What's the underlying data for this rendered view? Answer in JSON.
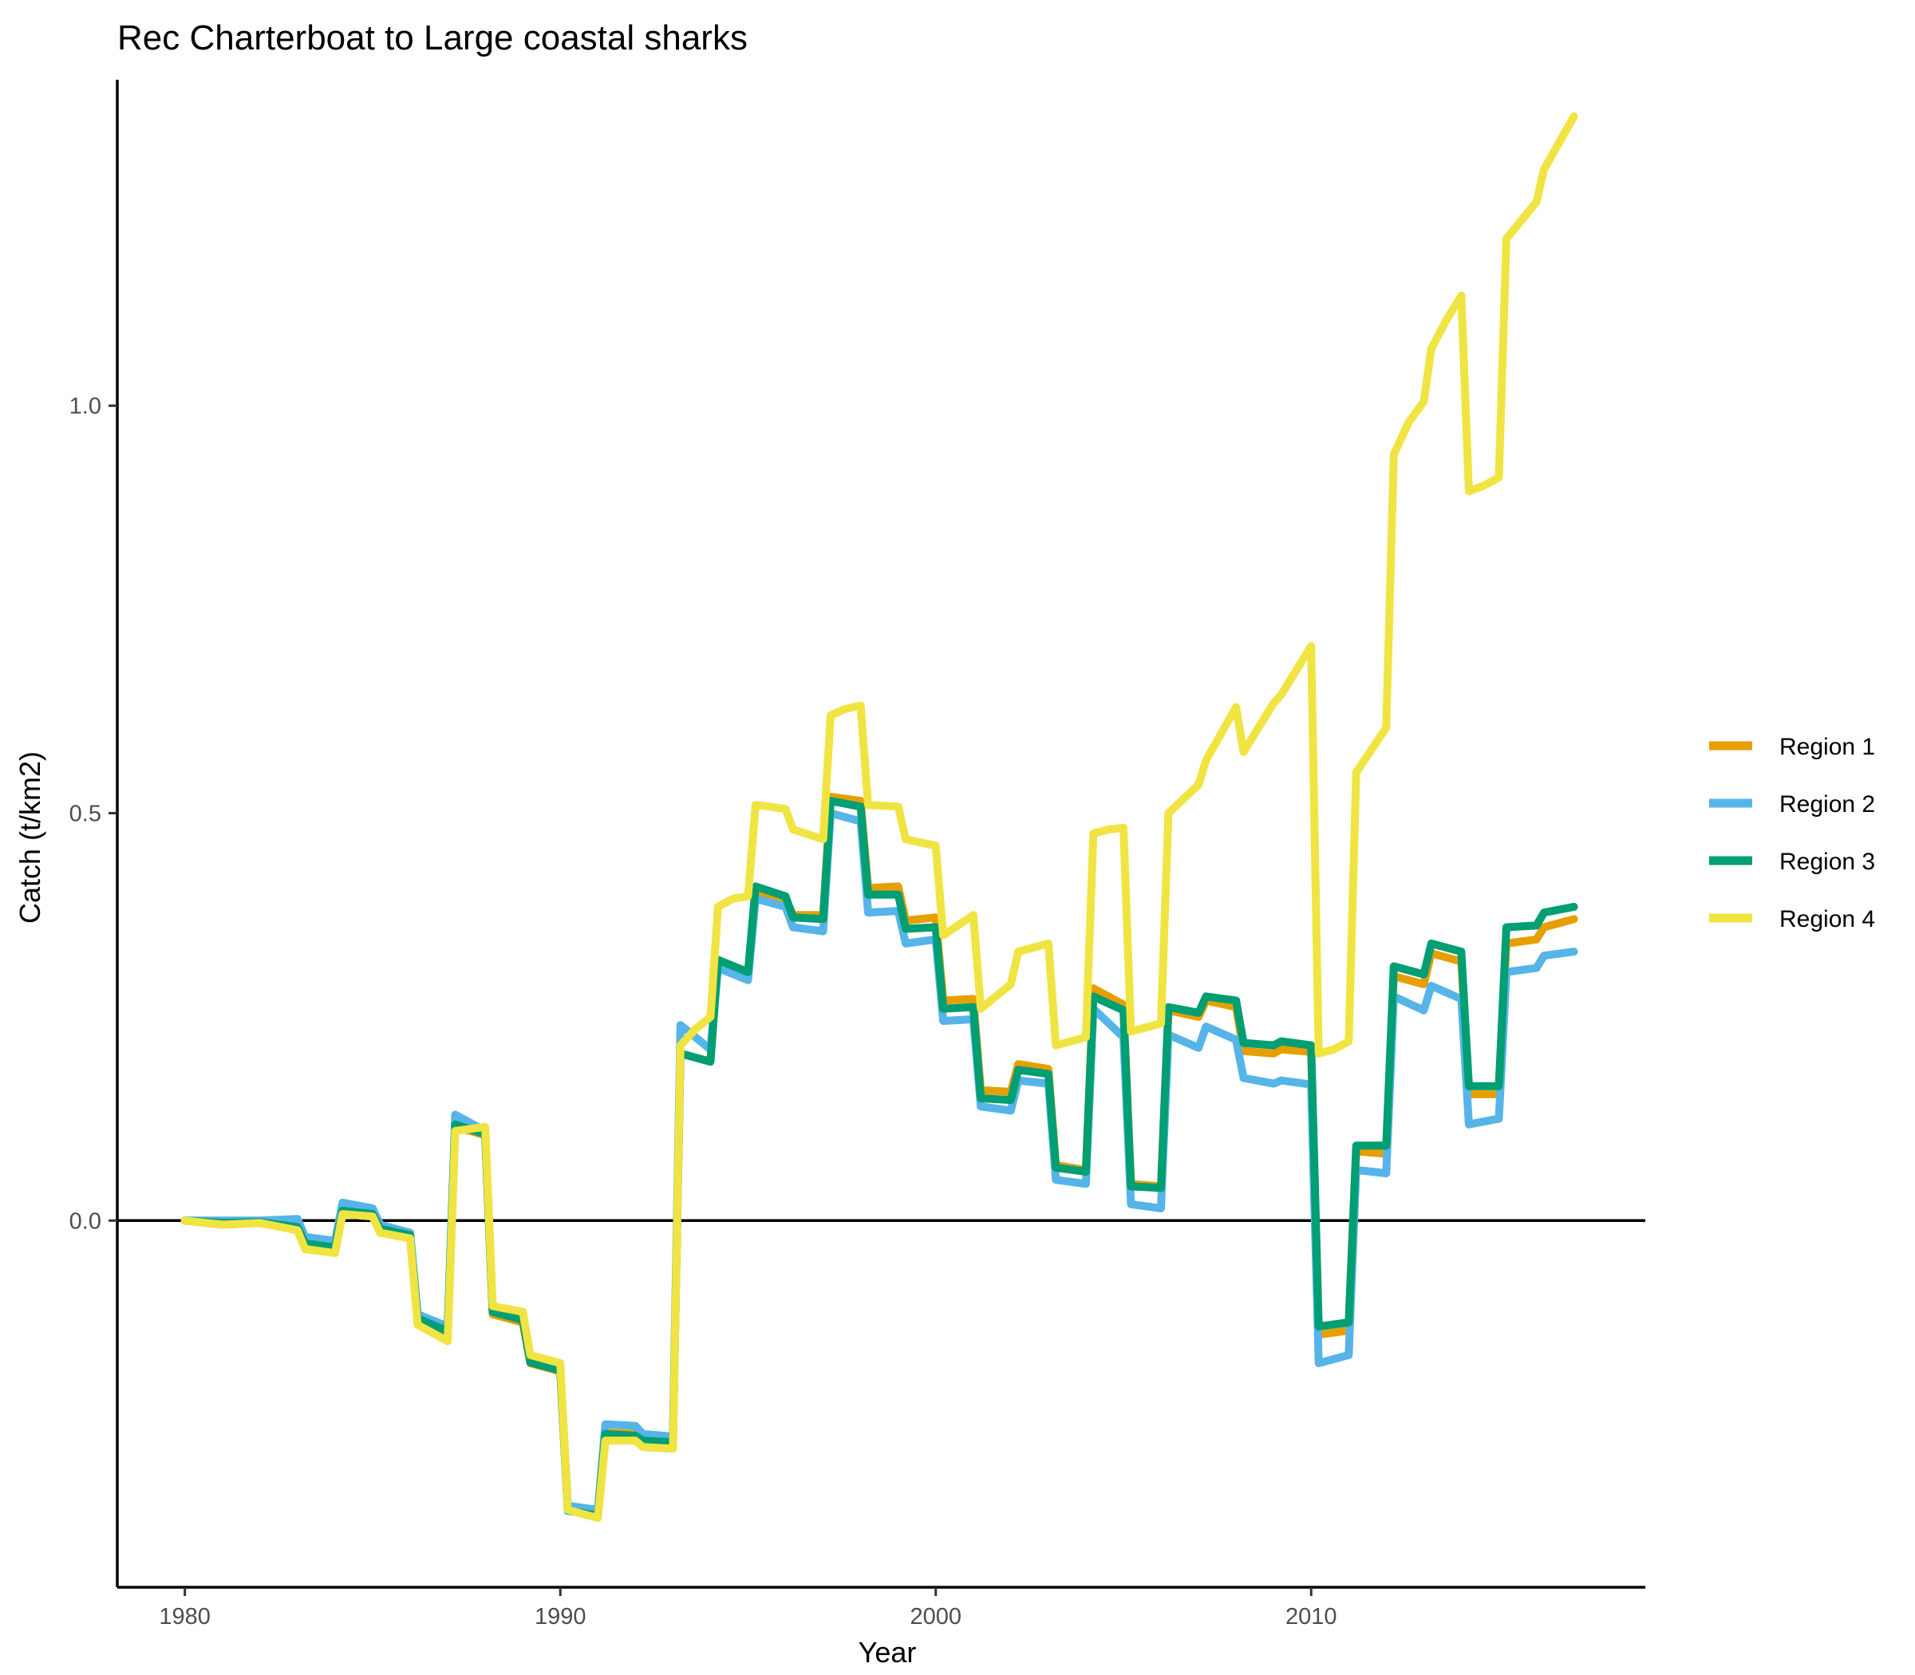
{
  "chart_data": {
    "type": "line",
    "title": "Rec Charterboat to Large coastal sharks",
    "xlabel": "Year",
    "ylabel": "Catch (t/km2)",
    "xlim": [
      1978.2,
      2018.9
    ],
    "ylim": [
      -0.45,
      1.4
    ],
    "x_ticks": [
      1980,
      1990,
      2000,
      2010
    ],
    "y_ticks": [
      0.0,
      0.5,
      1.0
    ],
    "x_tick_labels": [
      "1980",
      "1990",
      "2000",
      "2010"
    ],
    "y_tick_labels": [
      "0.0",
      "0.5",
      "1.0"
    ],
    "zero_line": true,
    "grid": false,
    "legend_position": "right",
    "series": [
      {
        "name": "Region 1",
        "color": "#E69F00",
        "points": [
          [
            1980,
            0.0
          ],
          [
            1981,
            -0.005
          ],
          [
            1982,
            -0.003
          ],
          [
            1983,
            -0.01
          ],
          [
            1983.2,
            -0.03
          ],
          [
            1984,
            -0.035
          ],
          [
            1984.2,
            0.01
          ],
          [
            1985,
            0.007
          ],
          [
            1985.2,
            -0.012
          ],
          [
            1986,
            -0.02
          ],
          [
            1986.2,
            -0.125
          ],
          [
            1987,
            -0.14
          ],
          [
            1987.2,
            0.115
          ],
          [
            1988,
            0.105
          ],
          [
            1988.2,
            -0.115
          ],
          [
            1989,
            -0.125
          ],
          [
            1989.2,
            -0.175
          ],
          [
            1990,
            -0.185
          ],
          [
            1990.2,
            -0.355
          ],
          [
            1991,
            -0.36
          ],
          [
            1991.2,
            -0.26
          ],
          [
            1992,
            -0.262
          ],
          [
            1992.2,
            -0.268
          ],
          [
            1993,
            -0.27
          ],
          [
            1993.2,
            0.205
          ],
          [
            1994,
            0.195
          ],
          [
            1994.2,
            0.32
          ],
          [
            1995,
            0.305
          ],
          [
            1995.2,
            0.405
          ],
          [
            1996,
            0.395
          ],
          [
            1996.2,
            0.375
          ],
          [
            1997,
            0.375
          ],
          [
            1997.2,
            0.52
          ],
          [
            1998,
            0.515
          ],
          [
            1998.2,
            0.408
          ],
          [
            1999,
            0.41
          ],
          [
            1999.2,
            0.368
          ],
          [
            2000,
            0.372
          ],
          [
            2000.2,
            0.27
          ],
          [
            2001,
            0.272
          ],
          [
            2001.2,
            0.16
          ],
          [
            2002,
            0.158
          ],
          [
            2002.2,
            0.192
          ],
          [
            2003,
            0.186
          ],
          [
            2003.2,
            0.068
          ],
          [
            2004,
            0.062
          ],
          [
            2004.2,
            0.285
          ],
          [
            2005,
            0.265
          ],
          [
            2005.2,
            0.045
          ],
          [
            2006,
            0.042
          ],
          [
            2006.2,
            0.258
          ],
          [
            2007,
            0.25
          ],
          [
            2007.2,
            0.27
          ],
          [
            2008,
            0.262
          ],
          [
            2008.2,
            0.208
          ],
          [
            2009,
            0.205
          ],
          [
            2009.2,
            0.21
          ],
          [
            2010,
            0.207
          ],
          [
            2010.2,
            -0.14
          ],
          [
            2011,
            -0.135
          ],
          [
            2011.2,
            0.085
          ],
          [
            2012,
            0.082
          ],
          [
            2012.2,
            0.3
          ],
          [
            2013,
            0.29
          ],
          [
            2013.2,
            0.328
          ],
          [
            2014,
            0.318
          ],
          [
            2014.2,
            0.155
          ],
          [
            2015,
            0.155
          ],
          [
            2015.2,
            0.34
          ],
          [
            2016,
            0.345
          ],
          [
            2016.2,
            0.36
          ],
          [
            2017,
            0.37
          ]
        ]
      },
      {
        "name": "Region 2",
        "color": "#56B4E9",
        "points": [
          [
            1980,
            0.0
          ],
          [
            1981,
            0.0
          ],
          [
            1982,
            0.0
          ],
          [
            1983,
            0.002
          ],
          [
            1983.2,
            -0.02
          ],
          [
            1984,
            -0.025
          ],
          [
            1984.2,
            0.022
          ],
          [
            1985,
            0.015
          ],
          [
            1985.2,
            -0.005
          ],
          [
            1986,
            -0.015
          ],
          [
            1986.2,
            -0.115
          ],
          [
            1987,
            -0.13
          ],
          [
            1987.2,
            0.13
          ],
          [
            1988,
            0.11
          ],
          [
            1988.2,
            -0.108
          ],
          [
            1989,
            -0.12
          ],
          [
            1989.2,
            -0.17
          ],
          [
            1990,
            -0.182
          ],
          [
            1990.2,
            -0.35
          ],
          [
            1991,
            -0.355
          ],
          [
            1991.2,
            -0.25
          ],
          [
            1992,
            -0.252
          ],
          [
            1992.2,
            -0.262
          ],
          [
            1993,
            -0.265
          ],
          [
            1993.2,
            0.24
          ],
          [
            1994,
            0.21
          ],
          [
            1994.2,
            0.31
          ],
          [
            1995,
            0.295
          ],
          [
            1995.2,
            0.395
          ],
          [
            1996,
            0.385
          ],
          [
            1996.2,
            0.36
          ],
          [
            1997,
            0.355
          ],
          [
            1997.2,
            0.5
          ],
          [
            1998,
            0.49
          ],
          [
            1998.2,
            0.378
          ],
          [
            1999,
            0.38
          ],
          [
            1999.2,
            0.34
          ],
          [
            2000,
            0.345
          ],
          [
            2000.2,
            0.245
          ],
          [
            2001,
            0.247
          ],
          [
            2001.2,
            0.14
          ],
          [
            2002,
            0.135
          ],
          [
            2002.2,
            0.172
          ],
          [
            2003,
            0.168
          ],
          [
            2003.2,
            0.05
          ],
          [
            2004,
            0.045
          ],
          [
            2004.2,
            0.26
          ],
          [
            2005,
            0.225
          ],
          [
            2005.2,
            0.02
          ],
          [
            2006,
            0.015
          ],
          [
            2006.2,
            0.228
          ],
          [
            2007,
            0.212
          ],
          [
            2007.2,
            0.238
          ],
          [
            2008,
            0.222
          ],
          [
            2008.2,
            0.175
          ],
          [
            2009,
            0.168
          ],
          [
            2009.2,
            0.172
          ],
          [
            2010,
            0.167
          ],
          [
            2010.2,
            -0.175
          ],
          [
            2011,
            -0.165
          ],
          [
            2011.2,
            0.062
          ],
          [
            2012,
            0.058
          ],
          [
            2012.2,
            0.275
          ],
          [
            2013,
            0.258
          ],
          [
            2013.2,
            0.288
          ],
          [
            2014,
            0.272
          ],
          [
            2014.2,
            0.118
          ],
          [
            2015,
            0.125
          ],
          [
            2015.2,
            0.305
          ],
          [
            2016,
            0.31
          ],
          [
            2016.2,
            0.325
          ],
          [
            2017,
            0.33
          ]
        ]
      },
      {
        "name": "Region 3",
        "color": "#009E73",
        "points": [
          [
            1980,
            0.0
          ],
          [
            1981,
            -0.003
          ],
          [
            1982,
            -0.002
          ],
          [
            1983,
            -0.008
          ],
          [
            1983.2,
            -0.028
          ],
          [
            1984,
            -0.033
          ],
          [
            1984.2,
            0.012
          ],
          [
            1985,
            0.008
          ],
          [
            1985.2,
            -0.01
          ],
          [
            1986,
            -0.018
          ],
          [
            1986.2,
            -0.12
          ],
          [
            1987,
            -0.136
          ],
          [
            1987.2,
            0.118
          ],
          [
            1988,
            0.106
          ],
          [
            1988.2,
            -0.112
          ],
          [
            1989,
            -0.122
          ],
          [
            1989.2,
            -0.174
          ],
          [
            1990,
            -0.184
          ],
          [
            1990.2,
            -0.356
          ],
          [
            1991,
            -0.362
          ],
          [
            1991.2,
            -0.262
          ],
          [
            1992,
            -0.264
          ],
          [
            1992.2,
            -0.27
          ],
          [
            1993,
            -0.272
          ],
          [
            1993.2,
            0.205
          ],
          [
            1994,
            0.195
          ],
          [
            1994.2,
            0.32
          ],
          [
            1995,
            0.305
          ],
          [
            1995.2,
            0.41
          ],
          [
            1996,
            0.398
          ],
          [
            1996.2,
            0.372
          ],
          [
            1997,
            0.37
          ],
          [
            1997.2,
            0.515
          ],
          [
            1998,
            0.508
          ],
          [
            1998.2,
            0.4
          ],
          [
            1999,
            0.4
          ],
          [
            1999.2,
            0.358
          ],
          [
            2000,
            0.36
          ],
          [
            2000.2,
            0.26
          ],
          [
            2001,
            0.262
          ],
          [
            2001.2,
            0.15
          ],
          [
            2002,
            0.148
          ],
          [
            2002.2,
            0.185
          ],
          [
            2003,
            0.18
          ],
          [
            2003.2,
            0.065
          ],
          [
            2004,
            0.06
          ],
          [
            2004.2,
            0.275
          ],
          [
            2005,
            0.258
          ],
          [
            2005.2,
            0.042
          ],
          [
            2006,
            0.04
          ],
          [
            2006.2,
            0.262
          ],
          [
            2007,
            0.255
          ],
          [
            2007.2,
            0.275
          ],
          [
            2008,
            0.27
          ],
          [
            2008.2,
            0.218
          ],
          [
            2009,
            0.215
          ],
          [
            2009.2,
            0.22
          ],
          [
            2010,
            0.215
          ],
          [
            2010.2,
            -0.13
          ],
          [
            2011,
            -0.125
          ],
          [
            2011.2,
            0.092
          ],
          [
            2012,
            0.092
          ],
          [
            2012.2,
            0.312
          ],
          [
            2013,
            0.302
          ],
          [
            2013.2,
            0.34
          ],
          [
            2014,
            0.33
          ],
          [
            2014.2,
            0.165
          ],
          [
            2015,
            0.165
          ],
          [
            2015.2,
            0.36
          ],
          [
            2016,
            0.362
          ],
          [
            2016.2,
            0.378
          ],
          [
            2017,
            0.385
          ]
        ]
      },
      {
        "name": "Region 4",
        "color": "#F0E442",
        "points": [
          [
            1980,
            0.0
          ],
          [
            1981,
            -0.005
          ],
          [
            1982,
            -0.003
          ],
          [
            1983,
            -0.012
          ],
          [
            1983.2,
            -0.035
          ],
          [
            1984,
            -0.04
          ],
          [
            1984.2,
            0.008
          ],
          [
            1985,
            0.005
          ],
          [
            1985.2,
            -0.015
          ],
          [
            1986,
            -0.022
          ],
          [
            1986.2,
            -0.128
          ],
          [
            1987,
            -0.148
          ],
          [
            1987.2,
            0.11
          ],
          [
            1988,
            0.115
          ],
          [
            1988.2,
            -0.105
          ],
          [
            1989,
            -0.112
          ],
          [
            1989.2,
            -0.165
          ],
          [
            1990,
            -0.175
          ],
          [
            1990.2,
            -0.355
          ],
          [
            1991,
            -0.365
          ],
          [
            1991.2,
            -0.27
          ],
          [
            1992,
            -0.27
          ],
          [
            1992.2,
            -0.278
          ],
          [
            1993,
            -0.28
          ],
          [
            1993.2,
            0.215
          ],
          [
            1993.6,
            0.235
          ],
          [
            1994,
            0.25
          ],
          [
            1994.2,
            0.385
          ],
          [
            1994.6,
            0.395
          ],
          [
            1995,
            0.398
          ],
          [
            1995.2,
            0.51
          ],
          [
            1995.6,
            0.508
          ],
          [
            1996,
            0.505
          ],
          [
            1996.2,
            0.48
          ],
          [
            1997,
            0.468
          ],
          [
            1997.2,
            0.62
          ],
          [
            1997.6,
            0.628
          ],
          [
            1998,
            0.632
          ],
          [
            1998.2,
            0.51
          ],
          [
            1999,
            0.508
          ],
          [
            1999.2,
            0.468
          ],
          [
            2000,
            0.46
          ],
          [
            2000.2,
            0.35
          ],
          [
            2001,
            0.375
          ],
          [
            2001.2,
            0.26
          ],
          [
            2002,
            0.29
          ],
          [
            2002.2,
            0.33
          ],
          [
            2003,
            0.34
          ],
          [
            2003.2,
            0.215
          ],
          [
            2004,
            0.225
          ],
          [
            2004.2,
            0.475
          ],
          [
            2004.6,
            0.48
          ],
          [
            2005,
            0.482
          ],
          [
            2005.2,
            0.232
          ],
          [
            2006,
            0.242
          ],
          [
            2006.2,
            0.5
          ],
          [
            2007,
            0.535
          ],
          [
            2007.2,
            0.565
          ],
          [
            2008,
            0.63
          ],
          [
            2008.2,
            0.575
          ],
          [
            2009,
            0.635
          ],
          [
            2009.2,
            0.645
          ],
          [
            2010,
            0.705
          ],
          [
            2010.2,
            0.205
          ],
          [
            2010.6,
            0.21
          ],
          [
            2011,
            0.22
          ],
          [
            2011.2,
            0.55
          ],
          [
            2012,
            0.605
          ],
          [
            2012.2,
            0.94
          ],
          [
            2012.6,
            0.98
          ],
          [
            2013,
            1.005
          ],
          [
            2013.2,
            1.07
          ],
          [
            2013.6,
            1.105
          ],
          [
            2014,
            1.135
          ],
          [
            2014.2,
            0.895
          ],
          [
            2014.6,
            0.902
          ],
          [
            2015,
            0.912
          ],
          [
            2015.2,
            1.205
          ],
          [
            2016,
            1.25
          ],
          [
            2016.2,
            1.29
          ],
          [
            2017,
            1.355
          ]
        ]
      }
    ]
  }
}
